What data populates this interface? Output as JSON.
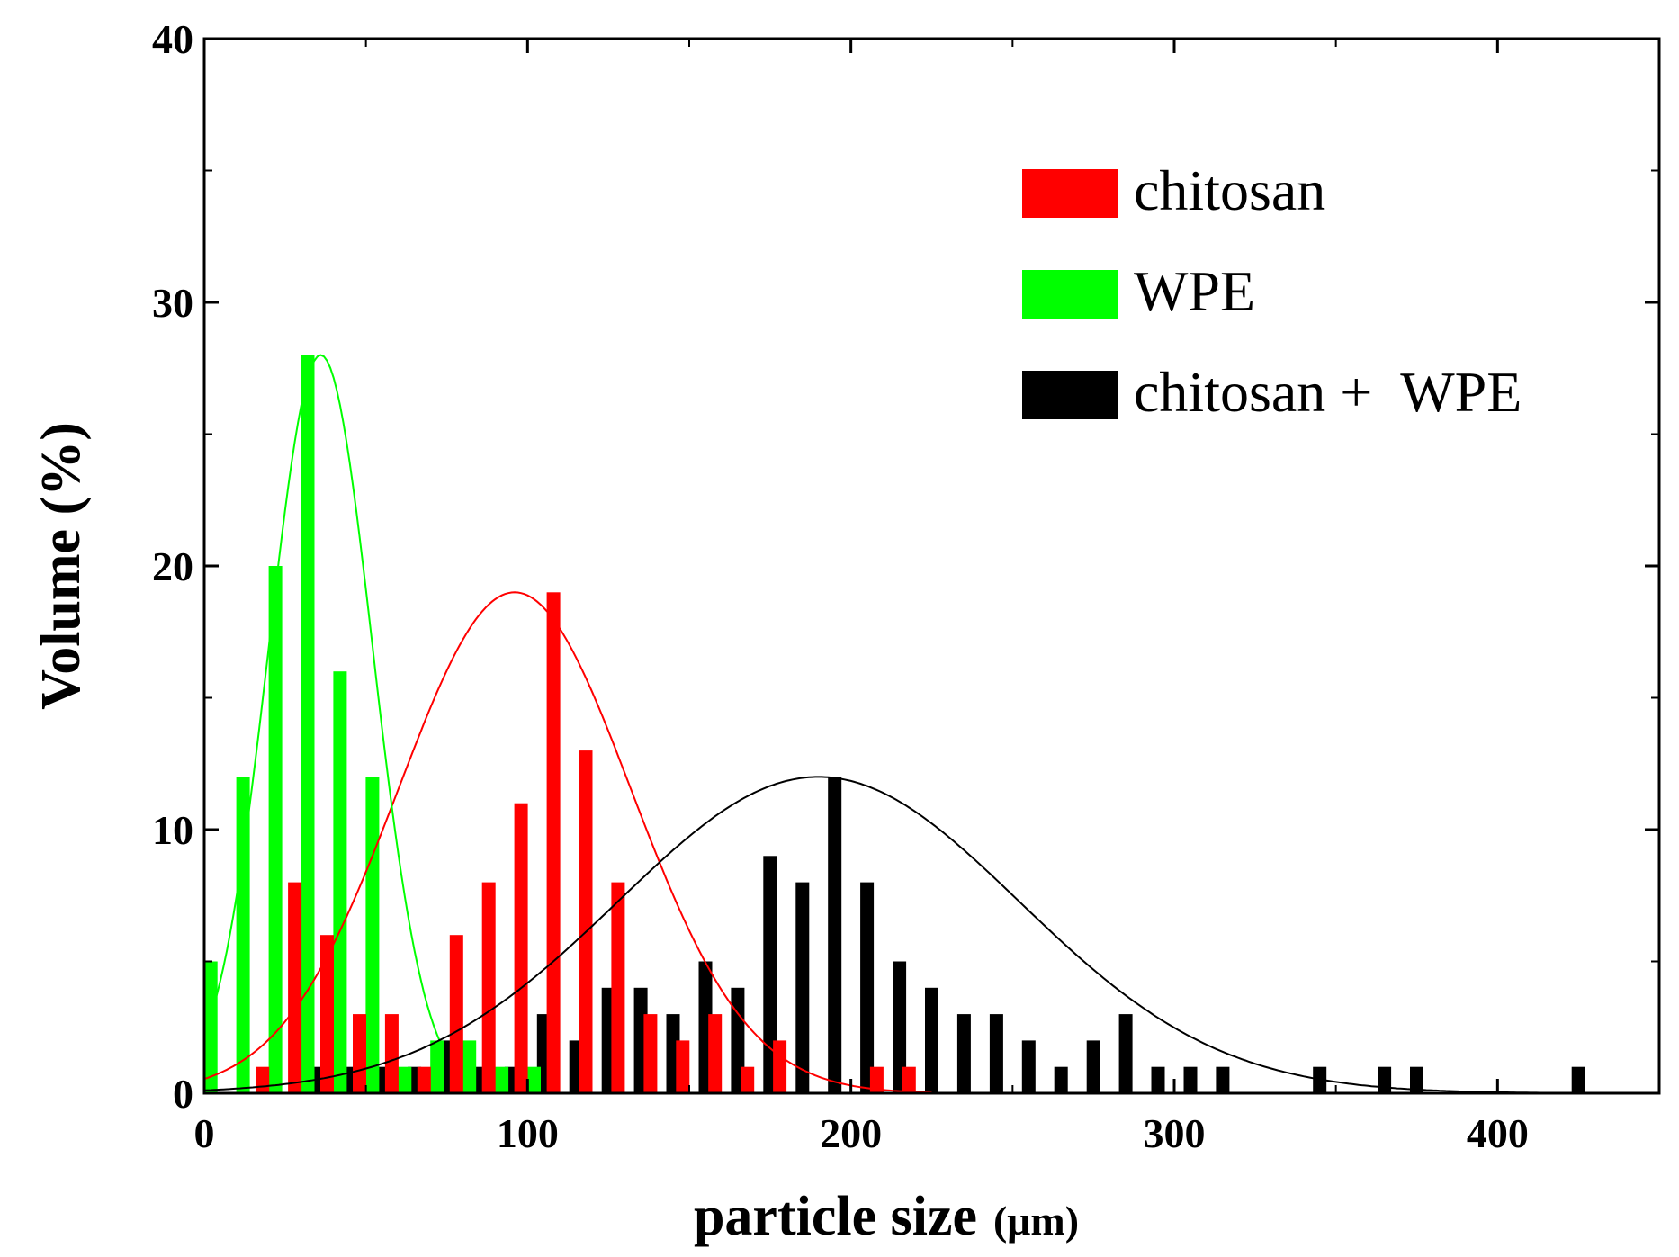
{
  "chart_data": {
    "type": "bar",
    "xlabel": "particle size",
    "xlabel_unit": "(μm)",
    "ylabel": "Volume (%)",
    "xlim": [
      0,
      450
    ],
    "ylim": [
      0,
      40
    ],
    "xticks": [
      0,
      100,
      200,
      300,
      400
    ],
    "yticks": [
      0,
      10,
      20,
      30,
      40
    ],
    "xtick_labels": [
      "0",
      "100",
      "200",
      "300",
      "400"
    ],
    "ytick_labels": [
      "0",
      "10",
      "20",
      "30",
      "40"
    ],
    "legend_position": "top-right",
    "series": [
      {
        "name": "chitosan",
        "color": "#ff0000",
        "bars": [
          {
            "x": 18,
            "y": 1
          },
          {
            "x": 28,
            "y": 8
          },
          {
            "x": 38,
            "y": 6
          },
          {
            "x": 48,
            "y": 3
          },
          {
            "x": 58,
            "y": 3
          },
          {
            "x": 68,
            "y": 1
          },
          {
            "x": 78,
            "y": 6
          },
          {
            "x": 88,
            "y": 8
          },
          {
            "x": 98,
            "y": 11
          },
          {
            "x": 108,
            "y": 19
          },
          {
            "x": 118,
            "y": 13
          },
          {
            "x": 128,
            "y": 8
          },
          {
            "x": 138,
            "y": 3
          },
          {
            "x": 148,
            "y": 2
          },
          {
            "x": 158,
            "y": 3
          },
          {
            "x": 168,
            "y": 1
          },
          {
            "x": 178,
            "y": 2
          },
          {
            "x": 208,
            "y": 1
          },
          {
            "x": 218,
            "y": 1
          }
        ],
        "fit": {
          "mean": 96,
          "sd": 36,
          "peak": 19
        }
      },
      {
        "name": "WPE",
        "color": "#00ff00",
        "bars": [
          {
            "x": 2,
            "y": 5
          },
          {
            "x": 12,
            "y": 12
          },
          {
            "x": 22,
            "y": 20
          },
          {
            "x": 32,
            "y": 28
          },
          {
            "x": 42,
            "y": 16
          },
          {
            "x": 52,
            "y": 12
          },
          {
            "x": 62,
            "y": 1
          },
          {
            "x": 72,
            "y": 2
          },
          {
            "x": 82,
            "y": 2
          },
          {
            "x": 92,
            "y": 1
          },
          {
            "x": 102,
            "y": 1
          }
        ],
        "fit": {
          "mean": 36,
          "sd": 16,
          "peak": 28
        }
      },
      {
        "name": "chitosan +  WPE",
        "color": "#000000",
        "bars": [
          {
            "x": 35,
            "y": 1
          },
          {
            "x": 45,
            "y": 1
          },
          {
            "x": 55,
            "y": 1
          },
          {
            "x": 65,
            "y": 1
          },
          {
            "x": 75,
            "y": 2
          },
          {
            "x": 85,
            "y": 1
          },
          {
            "x": 95,
            "y": 1
          },
          {
            "x": 105,
            "y": 3
          },
          {
            "x": 115,
            "y": 2
          },
          {
            "x": 125,
            "y": 4
          },
          {
            "x": 135,
            "y": 4
          },
          {
            "x": 145,
            "y": 3
          },
          {
            "x": 155,
            "y": 5
          },
          {
            "x": 165,
            "y": 4
          },
          {
            "x": 175,
            "y": 9
          },
          {
            "x": 185,
            "y": 8
          },
          {
            "x": 195,
            "y": 12
          },
          {
            "x": 205,
            "y": 8
          },
          {
            "x": 215,
            "y": 5
          },
          {
            "x": 225,
            "y": 4
          },
          {
            "x": 235,
            "y": 3
          },
          {
            "x": 245,
            "y": 3
          },
          {
            "x": 255,
            "y": 2
          },
          {
            "x": 265,
            "y": 1
          },
          {
            "x": 275,
            "y": 2
          },
          {
            "x": 285,
            "y": 3
          },
          {
            "x": 295,
            "y": 1
          },
          {
            "x": 305,
            "y": 1
          },
          {
            "x": 315,
            "y": 1
          },
          {
            "x": 345,
            "y": 1
          },
          {
            "x": 365,
            "y": 1
          },
          {
            "x": 375,
            "y": 1
          },
          {
            "x": 425,
            "y": 1
          }
        ],
        "fit": {
          "mean": 190,
          "sd": 62,
          "peak": 12
        }
      }
    ]
  }
}
